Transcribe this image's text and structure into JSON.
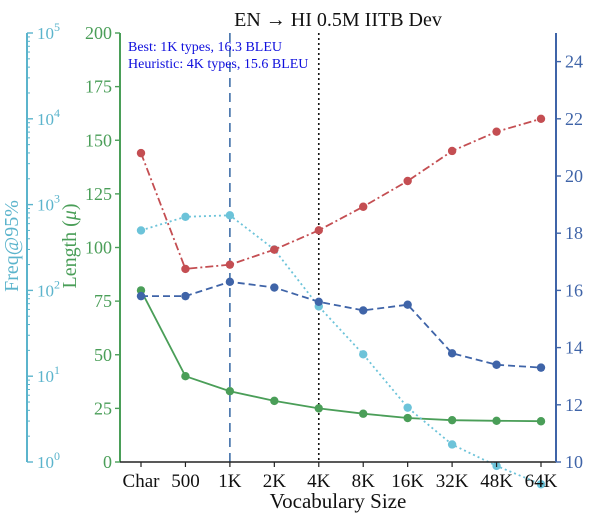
{
  "chart_data": {
    "type": "line",
    "title": "EN → HI 0.5M IITB Dev",
    "xlabel": "Vocabulary Size",
    "categories": [
      "Char",
      "500",
      "1K",
      "2K",
      "4K",
      "8K",
      "16K",
      "32K",
      "48K",
      "64K"
    ],
    "annotations": {
      "best": "Best: 1K types, 16.3 BLEU",
      "heuristic": "Heuristic: 4K types, 15.6 BLEU",
      "best_category": "1K",
      "heuristic_category": "4K"
    },
    "axes": {
      "freq": {
        "label": "Freq@95%",
        "scale": "log",
        "range": [
          1,
          100000
        ],
        "ticks": [
          1,
          10,
          100,
          1000,
          10000,
          100000
        ],
        "tick_labels": [
          "10",
          "10",
          "10",
          "10",
          "10",
          "10"
        ],
        "tick_exponents": [
          "0",
          "1",
          "2",
          "3",
          "4",
          "5"
        ],
        "color": "#5bb4cc"
      },
      "length": {
        "label_main": "Length (",
        "label_mu": "μ",
        "label_end": ")",
        "range": [
          0,
          200
        ],
        "ticks": [
          "0",
          "25",
          "50",
          "75",
          "100",
          "125",
          "150",
          "175",
          "200"
        ],
        "color": "#4a9e58"
      },
      "bleu": {
        "range": [
          10,
          25
        ],
        "ticks": [
          "10",
          "12",
          "14",
          "16",
          "18",
          "20",
          "22",
          "24"
        ],
        "color": "#3f64a8"
      }
    },
    "series": [
      {
        "key": "mean_length",
        "axis": "length",
        "color": "#4a9e58",
        "style": "solid",
        "values": [
          80,
          40,
          33,
          28.5,
          25,
          22.5,
          20.5,
          19.5,
          19.2,
          19
        ]
      },
      {
        "key": "freq95",
        "axis": "freq",
        "color": "#6cc3d9",
        "style": "dotted",
        "values": [
          500,
          720,
          750,
          300,
          65,
          18,
          4.3,
          1.6,
          0.9,
          0.55
        ]
      },
      {
        "key": "bleu",
        "axis": "bleu",
        "color": "#3f64a8",
        "style": "dashed",
        "values": [
          15.8,
          15.8,
          16.3,
          16.1,
          15.6,
          15.3,
          15.5,
          13.8,
          13.4,
          13.3
        ]
      },
      {
        "key": "other",
        "axis": "length",
        "color": "#c44e52",
        "style": "dashdot",
        "values": [
          144,
          90,
          92,
          99,
          108,
          119,
          131,
          145,
          154,
          160
        ]
      }
    ]
  }
}
